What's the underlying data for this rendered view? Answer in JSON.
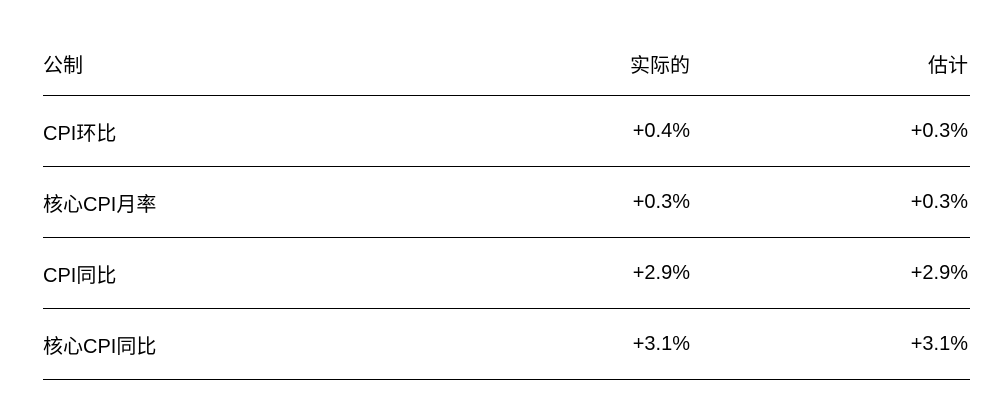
{
  "table": {
    "headers": [
      "公制",
      "实际的",
      "估计"
    ],
    "rows": [
      {
        "metric": "CPI环比",
        "actual": "+0.4%",
        "estimate": "+0.3%"
      },
      {
        "metric": "核心CPI月率",
        "actual": "+0.3%",
        "estimate": "+0.3%"
      },
      {
        "metric": "CPI同比",
        "actual": "+2.9%",
        "estimate": "+2.9%"
      },
      {
        "metric": "核心CPI同比",
        "actual": "+3.1%",
        "estimate": "+3.1%"
      }
    ]
  }
}
